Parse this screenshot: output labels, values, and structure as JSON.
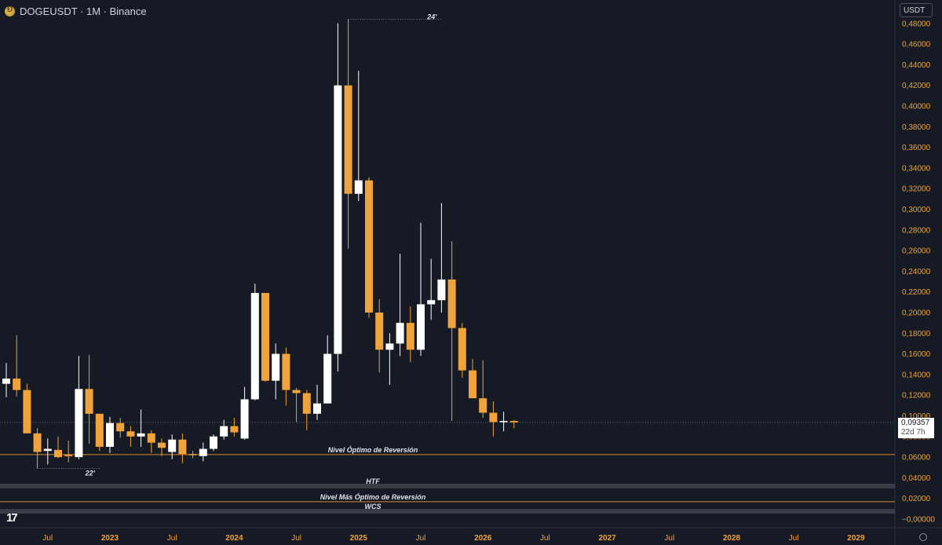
{
  "header": {
    "symbol_title": "DOGEUSDT · 1M · Binance",
    "currency": "USDT"
  },
  "price_tag": {
    "price": "0,09357",
    "countdown": "22d 7h"
  },
  "colors": {
    "background": "#161a25",
    "up_candle": "#ffffff",
    "down_candle": "#f0a33a",
    "axis_text": "#f0a33a",
    "level_line": "#d88a2c",
    "band": "#3a3d46"
  },
  "chart_data": {
    "type": "candlestick",
    "interval": "1M",
    "ylim": [
      0.0,
      0.49
    ],
    "y_ticks": [
      "0,48000",
      "0,46000",
      "0,44000",
      "0,42000",
      "0,40000",
      "0,38000",
      "0,36000",
      "0,34000",
      "0,32000",
      "0,30000",
      "0,28000",
      "0,26000",
      "0,24000",
      "0,22000",
      "0,20000",
      "0,18000",
      "0,16000",
      "0,14000",
      "0,12000",
      "0,10000",
      "0,08000",
      "0,06000",
      "0,04000",
      "0,02000",
      "−0,00000"
    ],
    "x_ticks": [
      {
        "label": "Jul",
        "month_index": 4,
        "bold": false
      },
      {
        "label": "2023",
        "month_index": 10,
        "bold": true
      },
      {
        "label": "Jul",
        "month_index": 16,
        "bold": false
      },
      {
        "label": "2024",
        "month_index": 22,
        "bold": true
      },
      {
        "label": "Jul",
        "month_index": 28,
        "bold": false
      },
      {
        "label": "2025",
        "month_index": 34,
        "bold": true
      },
      {
        "label": "Jul",
        "month_index": 40,
        "bold": false
      },
      {
        "label": "2026",
        "month_index": 46,
        "bold": true
      },
      {
        "label": "Jul",
        "month_index": 52,
        "bold": false
      },
      {
        "label": "2027",
        "month_index": 58,
        "bold": true
      },
      {
        "label": "Jul",
        "month_index": 64,
        "bold": false
      },
      {
        "label": "2028",
        "month_index": 70,
        "bold": true
      },
      {
        "label": "Jul",
        "month_index": 76,
        "bold": false
      },
      {
        "label": "2029",
        "month_index": 82,
        "bold": true
      }
    ],
    "candles": [
      {
        "o": 0.131,
        "h": 0.151,
        "l": 0.118,
        "c": 0.136
      },
      {
        "o": 0.136,
        "h": 0.178,
        "l": 0.119,
        "c": 0.125
      },
      {
        "o": 0.125,
        "h": 0.131,
        "l": 0.084,
        "c": 0.083
      },
      {
        "o": 0.083,
        "h": 0.088,
        "l": 0.049,
        "c": 0.065
      },
      {
        "o": 0.066,
        "h": 0.078,
        "l": 0.053,
        "c": 0.068
      },
      {
        "o": 0.067,
        "h": 0.08,
        "l": 0.059,
        "c": 0.06
      },
      {
        "o": 0.062,
        "h": 0.076,
        "l": 0.055,
        "c": 0.061
      },
      {
        "o": 0.06,
        "h": 0.158,
        "l": 0.058,
        "c": 0.126
      },
      {
        "o": 0.126,
        "h": 0.159,
        "l": 0.073,
        "c": 0.102
      },
      {
        "o": 0.102,
        "h": 0.102,
        "l": 0.066,
        "c": 0.07
      },
      {
        "o": 0.07,
        "h": 0.099,
        "l": 0.064,
        "c": 0.093
      },
      {
        "o": 0.093,
        "h": 0.098,
        "l": 0.079,
        "c": 0.085
      },
      {
        "o": 0.085,
        "h": 0.09,
        "l": 0.07,
        "c": 0.08
      },
      {
        "o": 0.08,
        "h": 0.106,
        "l": 0.07,
        "c": 0.083
      },
      {
        "o": 0.083,
        "h": 0.086,
        "l": 0.064,
        "c": 0.074
      },
      {
        "o": 0.074,
        "h": 0.078,
        "l": 0.061,
        "c": 0.069
      },
      {
        "o": 0.065,
        "h": 0.082,
        "l": 0.058,
        "c": 0.077
      },
      {
        "o": 0.077,
        "h": 0.083,
        "l": 0.054,
        "c": 0.063
      },
      {
        "o": 0.063,
        "h": 0.066,
        "l": 0.059,
        "c": 0.062
      },
      {
        "o": 0.061,
        "h": 0.074,
        "l": 0.056,
        "c": 0.068
      },
      {
        "o": 0.068,
        "h": 0.082,
        "l": 0.066,
        "c": 0.08
      },
      {
        "o": 0.08,
        "h": 0.096,
        "l": 0.077,
        "c": 0.09
      },
      {
        "o": 0.09,
        "h": 0.098,
        "l": 0.08,
        "c": 0.084
      },
      {
        "o": 0.078,
        "h": 0.128,
        "l": 0.077,
        "c": 0.116
      },
      {
        "o": 0.116,
        "h": 0.228,
        "l": 0.115,
        "c": 0.219
      },
      {
        "o": 0.219,
        "h": 0.218,
        "l": 0.133,
        "c": 0.134
      },
      {
        "o": 0.134,
        "h": 0.17,
        "l": 0.116,
        "c": 0.16
      },
      {
        "o": 0.16,
        "h": 0.166,
        "l": 0.11,
        "c": 0.125
      },
      {
        "o": 0.125,
        "h": 0.127,
        "l": 0.094,
        "c": 0.122
      },
      {
        "o": 0.122,
        "h": 0.125,
        "l": 0.086,
        "c": 0.102
      },
      {
        "o": 0.102,
        "h": 0.13,
        "l": 0.096,
        "c": 0.112
      },
      {
        "o": 0.112,
        "h": 0.178,
        "l": 0.112,
        "c": 0.16
      },
      {
        "o": 0.16,
        "h": 0.48,
        "l": 0.143,
        "c": 0.42
      },
      {
        "o": 0.42,
        "h": 0.484,
        "l": 0.262,
        "c": 0.315
      },
      {
        "o": 0.315,
        "h": 0.434,
        "l": 0.308,
        "c": 0.328
      },
      {
        "o": 0.328,
        "h": 0.331,
        "l": 0.195,
        "c": 0.2
      },
      {
        "o": 0.2,
        "h": 0.213,
        "l": 0.142,
        "c": 0.164
      },
      {
        "o": 0.164,
        "h": 0.18,
        "l": 0.13,
        "c": 0.17
      },
      {
        "o": 0.17,
        "h": 0.257,
        "l": 0.158,
        "c": 0.19
      },
      {
        "o": 0.19,
        "h": 0.206,
        "l": 0.152,
        "c": 0.164
      },
      {
        "o": 0.164,
        "h": 0.287,
        "l": 0.158,
        "c": 0.208
      },
      {
        "o": 0.208,
        "h": 0.252,
        "l": 0.193,
        "c": 0.212
      },
      {
        "o": 0.212,
        "h": 0.306,
        "l": 0.2,
        "c": 0.232
      },
      {
        "o": 0.232,
        "h": 0.269,
        "l": 0.095,
        "c": 0.185
      },
      {
        "o": 0.185,
        "h": 0.19,
        "l": 0.137,
        "c": 0.144
      },
      {
        "o": 0.144,
        "h": 0.155,
        "l": 0.12,
        "c": 0.117
      },
      {
        "o": 0.117,
        "h": 0.154,
        "l": 0.098,
        "c": 0.103
      },
      {
        "o": 0.103,
        "h": 0.114,
        "l": 0.08,
        "c": 0.094
      },
      {
        "o": 0.094,
        "h": 0.104,
        "l": 0.085,
        "c": 0.095
      },
      {
        "o": 0.095,
        "h": 0.096,
        "l": 0.088,
        "c": 0.0936
      }
    ],
    "levels": [
      {
        "label": "Nivel Óptimo de Reversión",
        "value": 0.0625,
        "kind": "line"
      },
      {
        "label": "HTF",
        "value": 0.032,
        "kind": "band"
      },
      {
        "label": "Nivel Más Óptimo de Reversión",
        "value": 0.0168,
        "kind": "line"
      },
      {
        "label": "WCS",
        "value": 0.0075,
        "kind": "band"
      }
    ],
    "current_price": 0.09357,
    "annotations": [
      {
        "label": "24'",
        "x_index": 33,
        "value": 0.484,
        "x_end_index": 42
      },
      {
        "label": "22'",
        "x_index": 3,
        "value": 0.049,
        "x_end_index": 9
      }
    ]
  }
}
